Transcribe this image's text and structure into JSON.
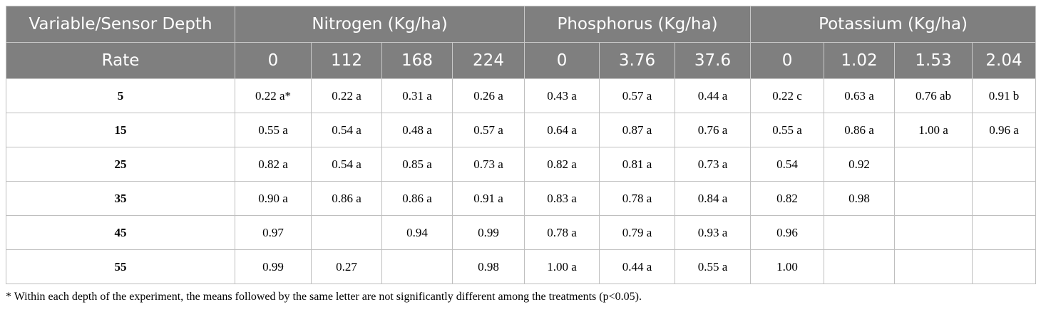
{
  "header": {
    "variable_label": "Variable/Sensor Depth",
    "rate_label": "Rate",
    "groups": [
      "Nitrogen (Kg/ha)",
      "Phosphorus (Kg/ha)",
      "Potassium (Kg/ha)"
    ],
    "rates": [
      "0",
      "112",
      "168",
      "224",
      "0",
      "3.76",
      "37.6",
      "0",
      "1.02",
      "1.53",
      "2.04"
    ]
  },
  "rows": [
    {
      "depth": "5",
      "cells": [
        "0.22 a*",
        "0.22 a",
        "0.31 a",
        "0.26 a",
        "0.43 a",
        "0.57 a",
        "0.44 a",
        "0.22 c",
        "0.63 a",
        "0.76 ab",
        "0.91 b"
      ]
    },
    {
      "depth": "15",
      "cells": [
        "0.55 a",
        "0.54 a",
        "0.48 a",
        "0.57 a",
        "0.64 a",
        "0.87 a",
        "0.76 a",
        "0.55 a",
        "0.86 a",
        "1.00 a",
        "0.96 a"
      ]
    },
    {
      "depth": "25",
      "cells": [
        "0.82 a",
        "0.54 a",
        "0.85 a",
        "0.73 a",
        "0.82 a",
        "0.81 a",
        "0.73 a",
        "0.54",
        "0.92",
        "",
        ""
      ]
    },
    {
      "depth": "35",
      "cells": [
        "0.90 a",
        "0.86 a",
        "0.86 a",
        "0.91 a",
        "0.83 a",
        "0.78 a",
        "0.84 a",
        "0.82",
        "0.98",
        "",
        ""
      ]
    },
    {
      "depth": "45",
      "cells": [
        "0.97",
        "",
        "0.94",
        "0.99",
        "0.78 a",
        "0.79 a",
        "0.93 a",
        "0.96",
        "",
        "",
        ""
      ]
    },
    {
      "depth": "55",
      "cells": [
        "0.99",
        "0.27",
        "",
        "0.98",
        "1.00 a",
        "0.44 a",
        "0.55 a",
        "1.00",
        "",
        "",
        ""
      ]
    }
  ],
  "footnote": "* Within each depth of the experiment, the means followed by the same letter are not significantly different among the treatments (p<0.05)."
}
